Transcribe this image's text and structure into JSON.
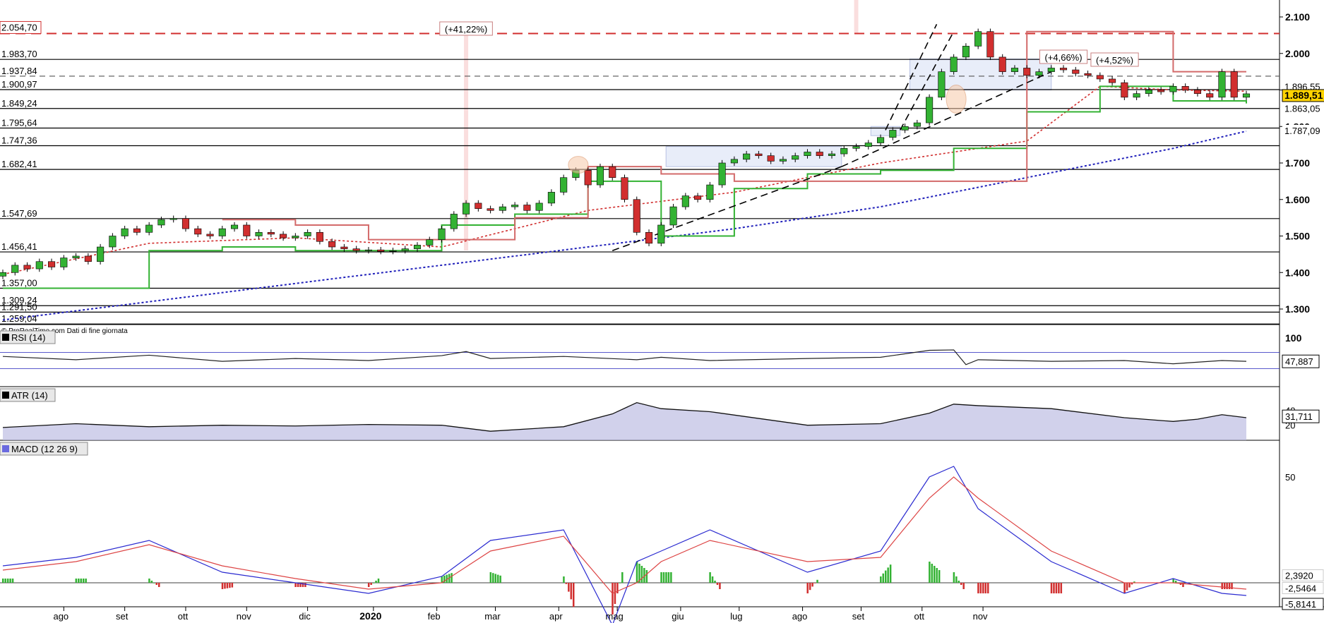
{
  "chart_data": [
    {
      "type": "candlestick",
      "title": "",
      "credit": "© ProRealTime.com  Dati di fine giornata",
      "x_tick_labels": [
        "ago",
        "set",
        "ott",
        "nov",
        "dic",
        "2020",
        "feb",
        "mar",
        "apr",
        "mag",
        "giu",
        "lug",
        "ago",
        "set",
        "ott",
        "nov"
      ],
      "y_tick_labels": [
        "2.100",
        "2.000",
        "1.900",
        "1.800",
        "1.700",
        "1.600",
        "1.500",
        "1.400",
        "1.300"
      ],
      "y_ticks": [
        2100,
        2000,
        1900,
        1800,
        1700,
        1600,
        1500,
        1400,
        1300
      ],
      "ylim": [
        1250,
        2130
      ],
      "price_levels": [
        {
          "label": "2.054,70",
          "value": 2054.7,
          "style": "red-dashed",
          "label_color": "#d12f2f"
        },
        {
          "label": "1.983,70",
          "value": 1983.7,
          "style": "black-solid"
        },
        {
          "label": "1.937,84",
          "value": 1937.84,
          "style": "grey-dashed"
        },
        {
          "label": "1.900,97",
          "value": 1900.97,
          "style": "black-solid"
        },
        {
          "label": "1.849,24",
          "value": 1849.24,
          "style": "black-solid"
        },
        {
          "label": "1.795,64",
          "value": 1795.64,
          "style": "black-solid"
        },
        {
          "label": "1.747,36",
          "value": 1747.36,
          "style": "black-solid"
        },
        {
          "label": "1.682,41",
          "value": 1682.41,
          "style": "black-solid"
        },
        {
          "label": "1.547,69",
          "value": 1547.69,
          "style": "black-solid"
        },
        {
          "label": "1.456,41",
          "value": 1456.41,
          "style": "black-solid"
        },
        {
          "label": "1.357,00",
          "value": 1357.0,
          "style": "black-solid"
        },
        {
          "label": "1.309,24",
          "value": 1309.24,
          "style": "black-solid"
        },
        {
          "label": "1.291,50",
          "value": 1291.5,
          "style": "black-solid"
        },
        {
          "label": "1.259,04",
          "value": 1259.04,
          "style": "black-solid"
        }
      ],
      "right_labels": [
        {
          "label": "1.896,55",
          "value": 1896.55,
          "color": "#d12f2f",
          "bg": "#ffffff"
        },
        {
          "label": "1.889,51",
          "value": 1889.51,
          "color": "#000000",
          "bg": "#ffd400"
        },
        {
          "label": "1.863,05",
          "value": 1863.05,
          "color": "#33b233",
          "bg": "#ffffff"
        },
        {
          "label": "1.787,09",
          "value": 1787.09,
          "color": "#2222bb",
          "bg": "#ffffff"
        }
      ],
      "annotations": [
        {
          "text": "(+41,22%)",
          "color": "#c0392b"
        },
        {
          "text": "(+4,66%)",
          "color": "#c0392b"
        },
        {
          "text": "(+4,52%)",
          "color": "#c0392b"
        }
      ],
      "series": [
        {
          "name": "",
          "style": "candles",
          "x": [
            0,
            5,
            10,
            15,
            20,
            25,
            30,
            35,
            40,
            45,
            50,
            55,
            60,
            65,
            70,
            75,
            80,
            85,
            90,
            95,
            100,
            105,
            110,
            115,
            120,
            125,
            130,
            135,
            140,
            145,
            150,
            155,
            160,
            165,
            170,
            175,
            180,
            185,
            190,
            195,
            200,
            205,
            210,
            215,
            220,
            225,
            230,
            235,
            240,
            245,
            250,
            255,
            260,
            265,
            270,
            275,
            280,
            285,
            290,
            295,
            300,
            305,
            310,
            315,
            320,
            325,
            330,
            335,
            340,
            345,
            350,
            355,
            360,
            365,
            370,
            375,
            380,
            385,
            390,
            395,
            400,
            405,
            410,
            415,
            420,
            425,
            430,
            435,
            440,
            445,
            450,
            455,
            460,
            465,
            470,
            475,
            480,
            485,
            490,
            495,
            500,
            505,
            510
          ],
          "y": [
            1400,
            1420,
            1410,
            1430,
            1415,
            1440,
            1445,
            1430,
            1470,
            1500,
            1520,
            1510,
            1530,
            1545,
            1548,
            1520,
            1505,
            1500,
            1520,
            1530,
            1500,
            1510,
            1505,
            1495,
            1500,
            1510,
            1485,
            1470,
            1465,
            1460,
            1462,
            1458,
            1460,
            1465,
            1475,
            1490,
            1520,
            1560,
            1590,
            1575,
            1570,
            1580,
            1585,
            1570,
            1590,
            1620,
            1660,
            1680,
            1640,
            1690,
            1660,
            1600,
            1510,
            1480,
            1530,
            1580,
            1610,
            1600,
            1640,
            1700,
            1710,
            1725,
            1720,
            1705,
            1710,
            1720,
            1730,
            1720,
            1725,
            1740,
            1745,
            1755,
            1770,
            1790,
            1800,
            1810,
            1880,
            1950,
            1990,
            2020,
            2060,
            1990,
            1950,
            1960,
            1940,
            1950,
            1960,
            1955,
            1945,
            1940,
            1930,
            1920,
            1880,
            1890,
            1900,
            1895,
            1910,
            1900,
            1890,
            1880,
            1950,
            1880,
            1889.51
          ]
        },
        {
          "name": "",
          "style": "ma-200-blue-dotted",
          "x": [
            0,
            60,
            120,
            180,
            240,
            300,
            360,
            420,
            480,
            510
          ],
          "y": [
            1270,
            1320,
            1370,
            1420,
            1470,
            1520,
            1580,
            1660,
            1740,
            1787.09
          ]
        },
        {
          "name": "",
          "style": "ma-red-dotted",
          "x": [
            0,
            60,
            120,
            180,
            240,
            300,
            360,
            420,
            450,
            480,
            510
          ],
          "y": [
            1395,
            1480,
            1495,
            1470,
            1570,
            1620,
            1700,
            1760,
            1910,
            1900,
            1896.55
          ]
        },
        {
          "name": "",
          "style": "stop-green",
          "x": [
            0,
            30,
            60,
            90,
            120,
            150,
            180,
            210,
            240,
            270,
            300,
            330,
            360,
            390,
            420,
            450,
            480,
            510
          ],
          "y": [
            1357,
            1357,
            1460,
            1470,
            1460,
            1460,
            1530,
            1560,
            1650,
            1500,
            1630,
            1670,
            1680,
            1740,
            1840,
            1910,
            1870,
            1863.05
          ]
        },
        {
          "name": "",
          "style": "stop-red",
          "x": [
            90,
            120,
            150,
            180,
            210,
            240,
            270,
            300,
            420,
            450,
            480,
            510
          ],
          "y": [
            1545,
            1530,
            1490,
            1490,
            1550,
            1690,
            1670,
            1650,
            2060,
            2060,
            1950,
            1950
          ]
        }
      ]
    },
    {
      "type": "line",
      "title": "RSI (14)",
      "y_tick_labels": [
        "100"
      ],
      "last_value": "47,887",
      "ylim": [
        0,
        100
      ],
      "levels": [
        70,
        30
      ],
      "series": [
        {
          "name": "",
          "x": [
            0,
            30,
            60,
            90,
            120,
            150,
            180,
            190,
            200,
            230,
            260,
            270,
            290,
            330,
            360,
            380,
            390,
            395,
            400,
            430,
            460,
            480,
            500,
            510
          ],
          "y": [
            60,
            52,
            63,
            48,
            55,
            50,
            62,
            72,
            55,
            60,
            52,
            58,
            50,
            55,
            58,
            75,
            76,
            40,
            52,
            48,
            50,
            42,
            50,
            48
          ]
        }
      ]
    },
    {
      "type": "area",
      "title": "ATR (14)",
      "y_tick_labels": [
        "40",
        "20"
      ],
      "last_value": "31,711",
      "ylim": [
        0,
        60
      ],
      "series": [
        {
          "name": "",
          "x": [
            0,
            30,
            60,
            90,
            120,
            150,
            180,
            200,
            230,
            250,
            260,
            270,
            290,
            330,
            360,
            380,
            390,
            400,
            430,
            460,
            480,
            490,
            500,
            510
          ],
          "y": [
            17,
            22,
            18,
            20,
            19,
            21,
            20,
            12,
            18,
            35,
            50,
            42,
            38,
            20,
            22,
            36,
            48,
            46,
            42,
            30,
            25,
            28,
            34,
            30
          ]
        }
      ]
    },
    {
      "type": "line",
      "title": "MACD (12 26 9)",
      "y_tick_labels": [
        "50"
      ],
      "last_values": [
        "2,3920",
        "-2,5464",
        "-5,8141"
      ],
      "ylim": [
        -25,
        70
      ],
      "series": [
        {
          "name": "",
          "style": "macd-blue",
          "x": [
            0,
            30,
            60,
            90,
            120,
            150,
            180,
            200,
            230,
            250,
            260,
            270,
            290,
            330,
            360,
            380,
            390,
            400,
            430,
            460,
            480,
            500,
            510
          ],
          "y": [
            8,
            12,
            20,
            5,
            0,
            -5,
            3,
            20,
            25,
            -20,
            10,
            15,
            25,
            5,
            15,
            50,
            55,
            35,
            10,
            -5,
            2,
            -5,
            -6
          ]
        },
        {
          "name": "",
          "style": "signal-red",
          "x": [
            0,
            30,
            60,
            90,
            120,
            150,
            180,
            200,
            230,
            250,
            260,
            270,
            290,
            330,
            360,
            380,
            390,
            400,
            430,
            460,
            480,
            500,
            510
          ],
          "y": [
            6,
            10,
            18,
            8,
            2,
            -3,
            0,
            15,
            22,
            -5,
            0,
            10,
            20,
            10,
            12,
            40,
            50,
            40,
            15,
            0,
            0,
            -2,
            -3
          ]
        },
        {
          "name": "",
          "style": "histogram",
          "x": [
            0,
            30,
            60,
            90,
            120,
            150,
            180,
            200,
            230,
            250,
            260,
            270,
            290,
            330,
            360,
            380,
            390,
            400,
            430,
            460,
            480,
            500,
            510
          ],
          "y": [
            2,
            2,
            2,
            -3,
            -2,
            -2,
            3,
            5,
            3,
            -15,
            10,
            5,
            5,
            -5,
            3,
            10,
            5,
            -5,
            -5,
            -5,
            2,
            -3,
            -3
          ]
        }
      ]
    }
  ],
  "colors": {
    "level_red": "#d12f2f",
    "green": "#33b233",
    "blue": "#2222bb",
    "price_bg": "#ffd400",
    "band_fill": "#dfe6f7",
    "area_fill": "#b9b9e0"
  }
}
